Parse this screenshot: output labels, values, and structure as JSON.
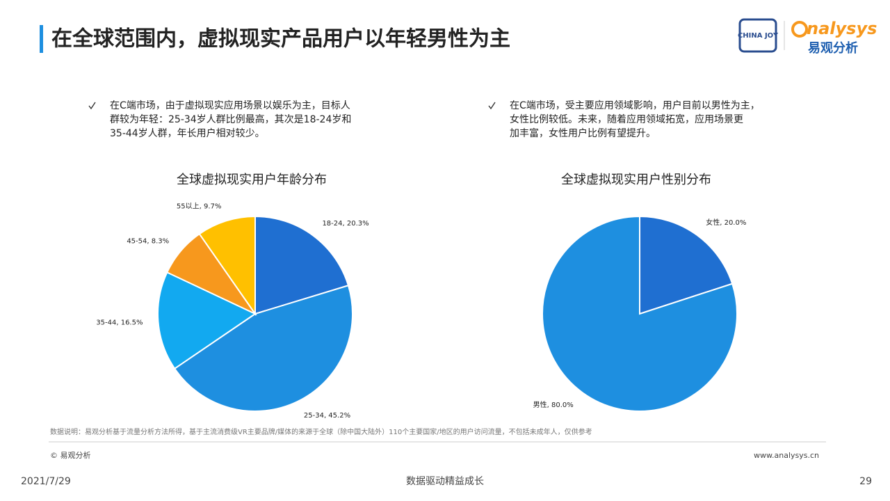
{
  "header": {
    "title": "在全球范围内，虚拟现实产品用户以年轻男性为主",
    "logo_en": "nalysys",
    "logo_cn": "易观分析",
    "logo_cj": "CHINA JOY"
  },
  "bullets": [
    {
      "lines": [
        "在C端市场，由于虚拟现实应用场景以娱乐为主，目标人",
        "群较为年轻：25-34岁人群比例最高，其次是18-24岁和",
        "35-44岁人群，年长用户相对较少。"
      ]
    },
    {
      "lines": [
        "在C端市场，受主要应用领域影响，用户目前以男性为主，",
        "女性比例较低。未来，随着应用领域拓宽，应用场景更",
        "加丰富，女性用户比例有望提升。"
      ]
    }
  ],
  "chart_data": [
    {
      "type": "pie",
      "title": "全球虚拟现实用户年龄分布",
      "values": [
        20.3,
        45.2,
        16.5,
        8.3,
        9.7
      ],
      "value_labels": [
        "18-24, 20.3%",
        "25-34, 45.2%",
        "35-44, 16.5%",
        "45-54, 8.3%",
        "55以上, 9.7%"
      ],
      "colors": [
        "#1f6fd1",
        "#1e8fe0",
        "#12a9f0",
        "#f7981d",
        "#ffc000"
      ]
    },
    {
      "type": "pie",
      "title": "全球虚拟现实用户性别分布",
      "values": [
        20.0,
        80.0
      ],
      "value_labels": [
        "女性, 20.0%",
        "男性, 80.0%"
      ],
      "colors": [
        "#1f6fd1",
        "#1e8fe0"
      ]
    }
  ],
  "footer": {
    "note": "数据说明：易观分析基于流量分析方法所得，基于主流消费级VR主要品牌/媒体的来源于全球（除中国大陆外）110个主要国家/地区的用户访问流量，不包括未成年人，仅供参考",
    "copyright": "© 易观分析",
    "website": "www.analysys.cn",
    "date": "2021/7/29",
    "slogan": "数据驱动精益成长",
    "page": "29"
  }
}
